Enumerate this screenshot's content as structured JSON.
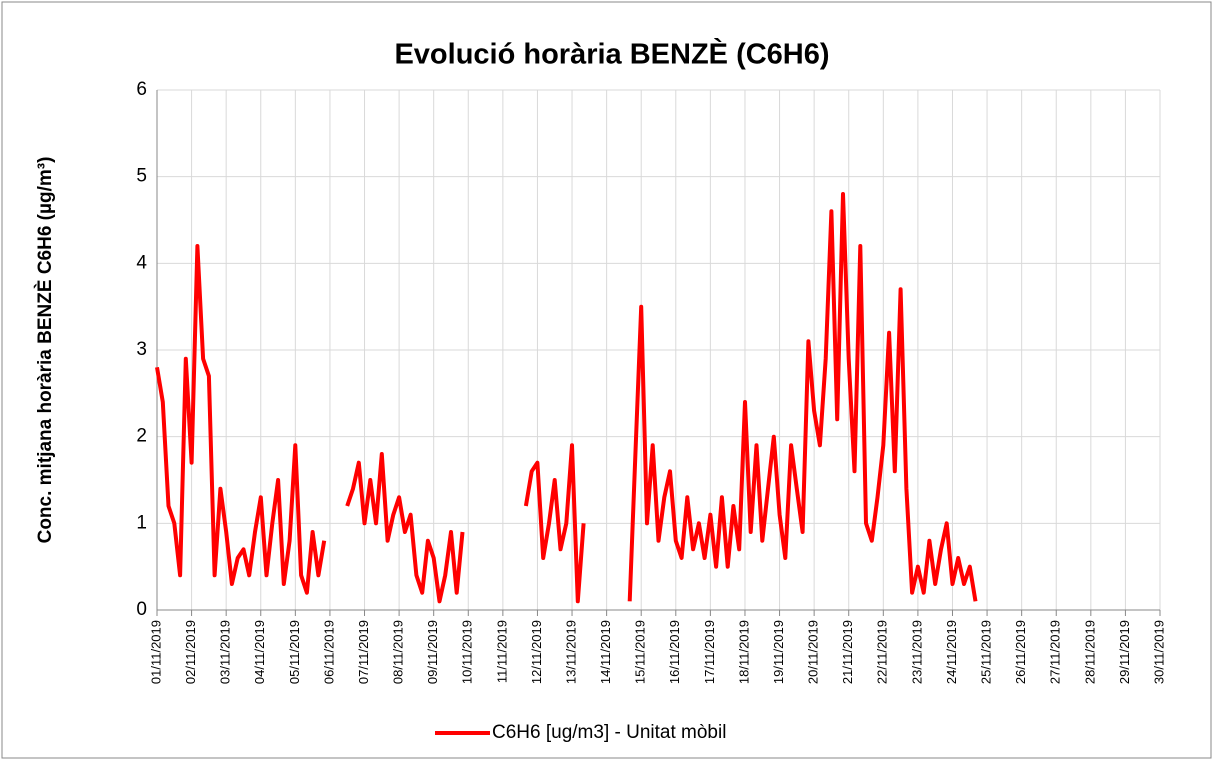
{
  "chart_data": {
    "type": "line",
    "title": "Evolució horària BENZÈ (C6H6)",
    "y_label": "Conc. mitjana horària BENZÈ C6H6 (µg/m³)",
    "categories": [
      "01/11/2019",
      null,
      null,
      null,
      null,
      null,
      "02/11/2019",
      null,
      null,
      null,
      null,
      null,
      "03/11/2019",
      null,
      null,
      null,
      null,
      null,
      "04/11/2019",
      null,
      null,
      null,
      null,
      null,
      "05/11/2019",
      null,
      null,
      null,
      null,
      null,
      "06/11/2019",
      null,
      null,
      null,
      null,
      null,
      "07/11/2019",
      null,
      null,
      null,
      null,
      null,
      "08/11/2019",
      null,
      null,
      null,
      null,
      null,
      "09/11/2019",
      null,
      null,
      null,
      null,
      null,
      "10/11/2019",
      null,
      null,
      null,
      null,
      null,
      "11/11/2019",
      null,
      null,
      null,
      null,
      null,
      "12/11/2019",
      null,
      null,
      null,
      null,
      null,
      "13/11/2019",
      null,
      null,
      null,
      null,
      null,
      "14/11/2019",
      null,
      null,
      null,
      null,
      null,
      "15/11/2019",
      null,
      null,
      null,
      null,
      null,
      "16/11/2019",
      null,
      null,
      null,
      null,
      null,
      "17/11/2019",
      null,
      null,
      null,
      null,
      null,
      "18/11/2019",
      null,
      null,
      null,
      null,
      null,
      "19/11/2019",
      null,
      null,
      null,
      null,
      null,
      "20/11/2019",
      null,
      null,
      null,
      null,
      null,
      "21/11/2019",
      null,
      null,
      null,
      null,
      null,
      "22/11/2019",
      null,
      null,
      null,
      null,
      null,
      "23/11/2019",
      null,
      null,
      null,
      null,
      null,
      "24/11/2019",
      null,
      null,
      null,
      null,
      null,
      "25/11/2019",
      null,
      null,
      null,
      null,
      null,
      "26/11/2019",
      null,
      null,
      null,
      null,
      null,
      "27/11/2019",
      null,
      null,
      null,
      null,
      null,
      "28/11/2019",
      null,
      null,
      null,
      null,
      null,
      "29/11/2019",
      null,
      null,
      null,
      null,
      null,
      "30/11/2019"
    ],
    "series": [
      {
        "name": "C6H6 [ug/m3] - Unitat mòbil",
        "color": "#ff0000",
        "values": [
          2.8,
          2.4,
          1.2,
          1.0,
          0.4,
          2.9,
          1.7,
          4.2,
          2.9,
          2.7,
          0.4,
          1.4,
          0.9,
          0.3,
          0.6,
          0.7,
          0.4,
          0.9,
          1.3,
          0.4,
          1.0,
          1.5,
          0.3,
          0.8,
          1.9,
          0.4,
          0.2,
          0.9,
          0.4,
          0.8,
          null,
          null,
          null,
          1.2,
          1.4,
          1.7,
          1.0,
          1.5,
          1.0,
          1.8,
          0.8,
          1.1,
          1.3,
          0.9,
          1.1,
          0.4,
          0.2,
          0.8,
          0.6,
          0.1,
          0.4,
          0.9,
          0.2,
          0.9,
          null,
          null,
          null,
          null,
          null,
          null,
          null,
          null,
          null,
          null,
          1.2,
          1.6,
          1.7,
          0.6,
          1.0,
          1.5,
          0.7,
          1.0,
          1.9,
          0.1,
          1.0,
          null,
          null,
          null,
          null,
          null,
          null,
          null,
          0.1,
          1.8,
          3.5,
          1.0,
          1.9,
          0.8,
          1.3,
          1.6,
          0.8,
          0.6,
          1.3,
          0.7,
          1.0,
          0.6,
          1.1,
          0.5,
          1.3,
          0.5,
          1.2,
          0.7,
          2.4,
          0.9,
          1.9,
          0.8,
          1.4,
          2.0,
          1.1,
          0.6,
          1.9,
          1.4,
          0.9,
          3.1,
          2.3,
          1.9,
          2.9,
          4.6,
          2.2,
          4.8,
          2.9,
          1.6,
          4.2,
          1.0,
          0.8,
          1.3,
          1.9,
          3.2,
          1.6,
          3.7,
          1.4,
          0.2,
          0.5,
          0.2,
          0.8,
          0.3,
          0.7,
          1.0,
          0.3,
          0.6,
          0.3,
          0.5,
          0.1,
          null,
          null,
          null,
          null,
          null,
          null,
          null,
          null,
          null,
          null,
          null,
          null,
          null,
          null,
          null,
          null,
          null,
          null,
          null,
          null,
          null,
          null,
          null,
          null,
          null,
          null,
          null,
          null,
          null,
          null,
          null,
          null
        ]
      }
    ],
    "ylim": [
      0,
      6
    ],
    "yticks": [
      0,
      1,
      2,
      3,
      4,
      5,
      6
    ],
    "grid": true,
    "legend": "bottom"
  }
}
